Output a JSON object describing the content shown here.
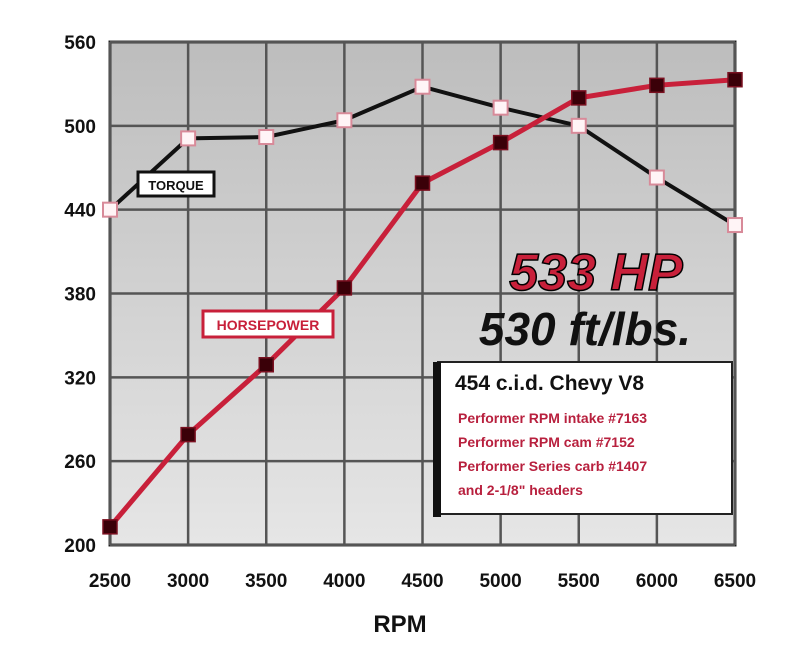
{
  "chart_data": {
    "type": "line",
    "xlabel": "RPM",
    "ylabel": "",
    "x": [
      2500,
      3000,
      3500,
      4000,
      4500,
      5000,
      5500,
      6000,
      6500
    ],
    "xlim": [
      2500,
      6500
    ],
    "ylim": [
      200,
      560
    ],
    "xticks": [
      "2500",
      "3000",
      "3500",
      "4000",
      "4500",
      "5000",
      "5500",
      "6000",
      "6500"
    ],
    "yticks": [
      "200",
      "260",
      "320",
      "380",
      "440",
      "500",
      "560"
    ],
    "grid": true,
    "series": [
      {
        "name": "TORQUE",
        "color": "#111111",
        "marker": "open-square",
        "values": [
          440,
          491,
          492,
          504,
          528,
          513,
          500,
          463,
          429
        ]
      },
      {
        "name": "HORSEPOWER",
        "color": "#c8203a",
        "marker": "filled-square",
        "values": [
          213,
          279,
          329,
          384,
          459,
          488,
          520,
          529,
          533
        ]
      }
    ],
    "annotations": {
      "hp_headline": "533 HP",
      "torque_headline": "530 ft/lbs.",
      "spec_title": "454 c.i.d. Chevy V8",
      "spec_lines": [
        "Performer RPM intake #7163",
        "Performer RPM cam #7152",
        "Performer Series carb #1407",
        "and 2-1/8\" headers"
      ]
    },
    "colors": {
      "plot_bg": "#c9c9c9",
      "grid": "#555555",
      "accent": "#c8203a"
    }
  }
}
